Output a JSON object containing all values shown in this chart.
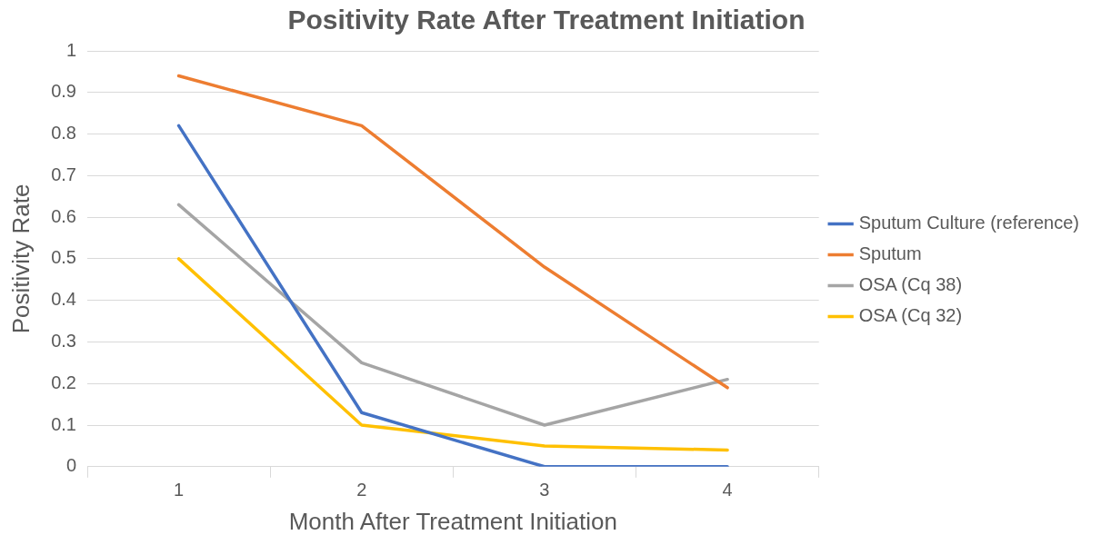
{
  "chart_data": {
    "type": "line",
    "title": "Positivity Rate After Treatment Initiation",
    "xlabel": "Month After Treatment Initiation",
    "ylabel": "Positivity Rate",
    "categories": [
      "1",
      "2",
      "3",
      "4"
    ],
    "series": [
      {
        "name": "Sputum Culture (reference)",
        "color": "#4472c4",
        "values": [
          0.82,
          0.13,
          0,
          0
        ]
      },
      {
        "name": "Sputum",
        "color": "#ed7d31",
        "values": [
          0.94,
          0.82,
          0.48,
          0.19
        ]
      },
      {
        "name": "OSA (Cq 38)",
        "color": "#a5a5a5",
        "values": [
          0.63,
          0.25,
          0.1,
          0.21
        ]
      },
      {
        "name": "OSA (Cq 32)",
        "color": "#ffc000",
        "values": [
          0.5,
          0.1,
          0.05,
          0.04
        ]
      }
    ],
    "ylim": [
      0,
      1
    ],
    "yticks": [
      0,
      0.1,
      0.2,
      0.3,
      0.4,
      0.5,
      0.6,
      0.7,
      0.8,
      0.9,
      1
    ],
    "grid": "y",
    "legend": "right",
    "marker": "none",
    "line_style": "solid"
  }
}
